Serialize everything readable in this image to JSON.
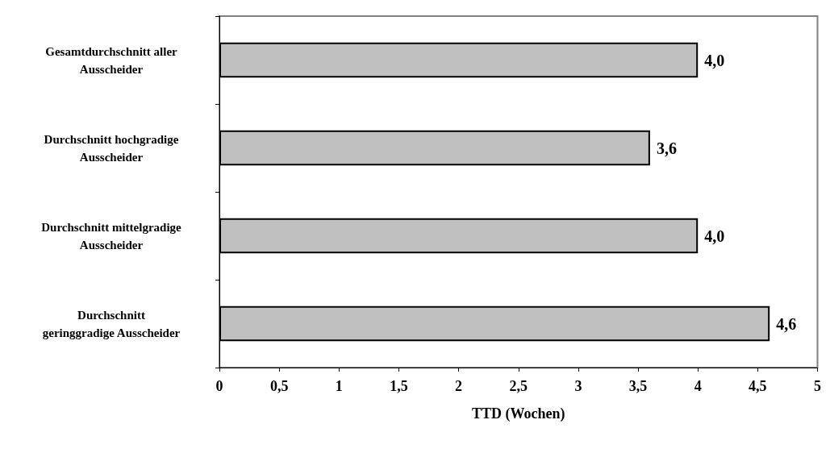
{
  "chart_data": {
    "type": "bar",
    "orientation": "horizontal",
    "xlabel": "TTD (Wochen)",
    "categories": [
      "Gesamtdurchschnitt aller\nAusscheider",
      "Durchschnitt hochgradige\nAusscheider",
      "Durchschnitt mittelgradige\nAusscheider",
      "Durchschnitt\ngeringgradige Ausscheider"
    ],
    "values": [
      4.0,
      3.6,
      4.0,
      4.6
    ],
    "value_labels": [
      "4,0",
      "3,6",
      "4,0",
      "4,6"
    ],
    "color": "#c0c0c0",
    "xlim": [
      0,
      5
    ],
    "xticks": [
      0,
      {
        "value": 0.5,
        "label": "0,5"
      },
      1,
      {
        "value": 1.5,
        "label": "1,5"
      },
      2,
      {
        "value": 2.5,
        "label": "2,5"
      },
      3,
      {
        "value": 3.5,
        "label": "3,5"
      },
      4,
      {
        "value": 4.5,
        "label": "4,5"
      },
      5
    ],
    "grid": false
  }
}
